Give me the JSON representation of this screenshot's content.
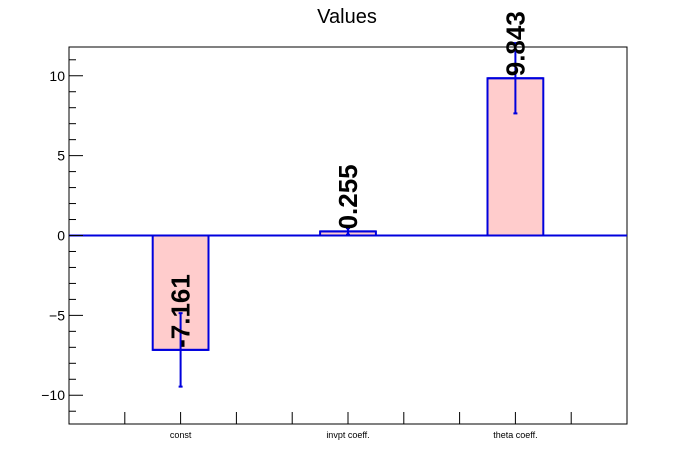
{
  "chart_data": {
    "type": "bar",
    "title": "Values",
    "categories": [
      "const",
      "invpt coeff.",
      "theta coeff."
    ],
    "values": [
      -7.161,
      0.255,
      9.843
    ],
    "errors": [
      2.3,
      0.2,
      2.2
    ],
    "data_labels": [
      "-7.161",
      "0.255",
      "9.843"
    ],
    "ylim": [
      -11.8,
      11.8
    ],
    "yticks": [
      -10,
      -5,
      0,
      5,
      10
    ],
    "ytick_labels": [
      "−10",
      "−5",
      "0",
      "5",
      "10"
    ],
    "xlabel": "",
    "ylabel": "",
    "grid": false,
    "colors": {
      "bar_fill": "#ffcccc",
      "bar_edge": "#0000dd",
      "error_bar": "#0000dd",
      "zero_line": "#0000dd",
      "axis": "#000000"
    }
  }
}
